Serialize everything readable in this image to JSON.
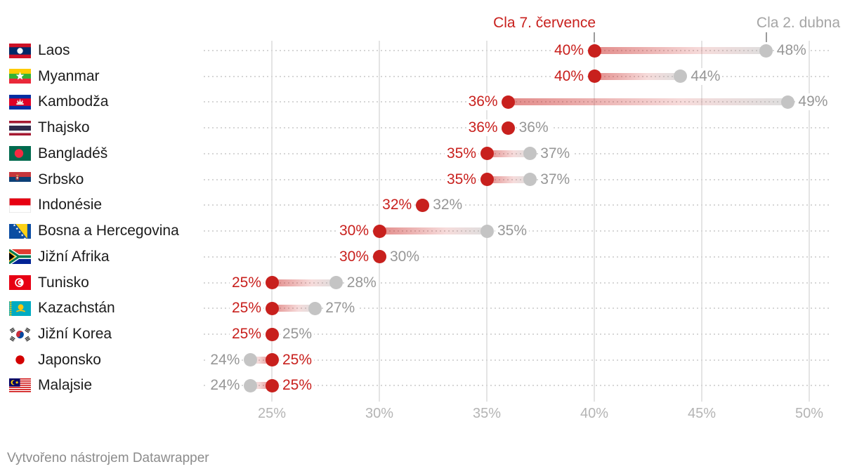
{
  "legend": {
    "july_label": "Cla 7. července",
    "april_label": "Cla 2. dubna"
  },
  "footer": {
    "credit": "Vytvořeno nástrojem Datawrapper"
  },
  "colors": {
    "july_red": "#c8201d",
    "april_gray": "#c4c4c4",
    "gray_text": "#969696",
    "axis_text": "#b4b4b4",
    "label_text": "#1c1c1c",
    "gridline": "#e4e4e4"
  },
  "chart_data": {
    "type": "arrow-range",
    "series_names": [
      "Cla 7. července",
      "Cla 2. dubna"
    ],
    "x_axis": {
      "ticks": [
        "25%",
        "30%",
        "35%",
        "40%",
        "45%",
        "50%"
      ],
      "tick_values": [
        25,
        30,
        35,
        40,
        45,
        50
      ],
      "min_visible": 21.8,
      "max_visible": 51.0,
      "grid": true
    },
    "legend_position": "top",
    "rows": [
      {
        "country": "Laos",
        "flag": "la",
        "july": 40,
        "april": 48,
        "july_label": "40%",
        "april_label": "48%"
      },
      {
        "country": "Myanmar",
        "flag": "mm",
        "july": 40,
        "april": 44,
        "july_label": "40%",
        "april_label": "44%"
      },
      {
        "country": "Kambodža",
        "flag": "kh",
        "july": 36,
        "april": 49,
        "july_label": "36%",
        "april_label": "49%"
      },
      {
        "country": "Thajsko",
        "flag": "th",
        "july": 36,
        "april": 36,
        "july_label": "36%",
        "april_label": "36%"
      },
      {
        "country": "Bangladéš",
        "flag": "bd",
        "july": 35,
        "april": 37,
        "july_label": "35%",
        "april_label": "37%"
      },
      {
        "country": "Srbsko",
        "flag": "rs",
        "july": 35,
        "april": 37,
        "july_label": "35%",
        "april_label": "37%"
      },
      {
        "country": "Indonésie",
        "flag": "id",
        "july": 32,
        "april": 32,
        "july_label": "32%",
        "april_label": "32%"
      },
      {
        "country": "Bosna a Hercegovina",
        "flag": "ba",
        "july": 30,
        "april": 35,
        "july_label": "30%",
        "april_label": "35%"
      },
      {
        "country": "Jižní Afrika",
        "flag": "za",
        "july": 30,
        "april": 30,
        "july_label": "30%",
        "april_label": "30%"
      },
      {
        "country": "Tunisko",
        "flag": "tn",
        "july": 25,
        "april": 28,
        "july_label": "25%",
        "april_label": "28%"
      },
      {
        "country": "Kazachstán",
        "flag": "kz",
        "july": 25,
        "april": 27,
        "july_label": "25%",
        "april_label": "27%"
      },
      {
        "country": "Jižní Korea",
        "flag": "kr",
        "july": 25,
        "april": 25,
        "july_label": "25%",
        "april_label": "25%"
      },
      {
        "country": "Japonsko",
        "flag": "jp",
        "july": 25,
        "april": 24,
        "july_label": "25%",
        "april_label": "24%"
      },
      {
        "country": "Malajsie",
        "flag": "my",
        "july": 25,
        "april": 24,
        "july_label": "25%",
        "april_label": "24%"
      }
    ]
  }
}
